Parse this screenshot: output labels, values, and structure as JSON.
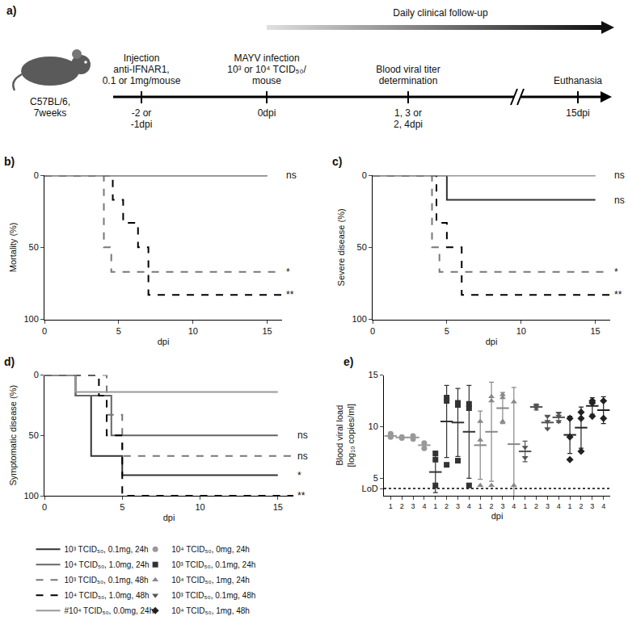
{
  "diagram": {
    "panel": "a)",
    "subject": [
      "C57BL/6,",
      "7weeks"
    ],
    "follow_up": "Daily clinical follow-up",
    "events": [
      {
        "above": [
          "Injection",
          "anti-IFNAR1,",
          "0.1 or 1mg/mouse"
        ],
        "below": [
          "-2 or",
          "-1dpi"
        ]
      },
      {
        "above": [
          "MAYV infection",
          "10³ or 10⁴ TCID₅₀/",
          "mouse"
        ],
        "below": [
          "0dpi"
        ]
      },
      {
        "above": [
          "Blood viral titer",
          "determination"
        ],
        "below": [
          "1, 3 or",
          "2, 4dpi"
        ]
      },
      {
        "above": [
          "Euthanasia"
        ],
        "below": [
          "15dpi"
        ]
      }
    ]
  },
  "chart_data": [
    {
      "panel": "b)",
      "type": "line",
      "x_label": "dpi",
      "y_label": "Mortality (%)",
      "xlim": [
        0,
        16
      ],
      "xticks": [
        0,
        5,
        10,
        15
      ],
      "ylim": [
        100,
        0
      ],
      "yticks": [
        0,
        50,
        100
      ],
      "grid": false,
      "series": [
        {
          "name": "10³ TCID₅₀, 0.1mg, 24h",
          "color": "#333333",
          "line_style": "solid",
          "x": [
            0,
            15
          ],
          "values": [
            0,
            0
          ]
        },
        {
          "name": "10⁴ TCID₅₀, 1.0mg, 24h",
          "color": "#666666",
          "line_style": "solid",
          "x": [
            0,
            15
          ],
          "values": [
            0,
            0
          ],
          "significance": "ns"
        },
        {
          "name": "10³ TCID₅₀, 0.1mg, 48h",
          "color": "#777777",
          "line_style": "dashed",
          "x": [
            0,
            4,
            4.5,
            16
          ],
          "values": [
            0,
            50,
            67,
            67
          ],
          "significance": "*"
        },
        {
          "name": "10⁴ TCID₅₀, 1.0mg, 48h",
          "color": "#000000",
          "line_style": "dashed",
          "x": [
            0,
            4.6,
            5.3,
            6.3,
            7,
            16
          ],
          "values": [
            0,
            17,
            33,
            50,
            83,
            83
          ],
          "significance": "**"
        },
        {
          "name": "#10⁴ TCID₅₀, 0.0mg, 24h",
          "color": "#999999",
          "line_style": "solid",
          "x": [
            0,
            15
          ],
          "values": [
            0,
            0
          ]
        }
      ]
    },
    {
      "panel": "c)",
      "type": "line",
      "x_label": "dpi",
      "y_label": "Severe disease (%)",
      "xlim": [
        0,
        16
      ],
      "xticks": [
        0,
        5,
        10,
        15
      ],
      "ylim": [
        100,
        0
      ],
      "yticks": [
        0,
        50,
        100
      ],
      "grid": false,
      "series": [
        {
          "name": "10³ TCID₅₀, 0.1mg, 24h",
          "color": "#333333",
          "line_style": "solid",
          "x": [
            0,
            5,
            15
          ],
          "values": [
            0,
            17,
            17
          ],
          "significance": "ns"
        },
        {
          "name": "10⁴ TCID₅₀, 1.0mg, 24h",
          "color": "#666666",
          "line_style": "solid",
          "x": [
            0,
            15
          ],
          "values": [
            0,
            0
          ]
        },
        {
          "name": "10³ TCID₅₀, 0.1mg, 48h",
          "color": "#777777",
          "line_style": "dashed",
          "x": [
            0,
            4,
            4.5,
            16
          ],
          "values": [
            0,
            50,
            67,
            67
          ],
          "significance": "*"
        },
        {
          "name": "10⁴ TCID₅₀, 1.0mg, 48h",
          "color": "#000000",
          "line_style": "dashed",
          "x": [
            0,
            4.3,
            5,
            6,
            16
          ],
          "values": [
            0,
            33,
            50,
            83,
            83
          ],
          "significance": "**"
        },
        {
          "name": "#10⁴ TCID₅₀, 0.0mg, 24h",
          "color": "#999999",
          "line_style": "solid",
          "x": [
            0,
            15
          ],
          "values": [
            0,
            0
          ],
          "significance": "ns"
        }
      ]
    },
    {
      "panel": "d)",
      "type": "line",
      "x_label": "dpi",
      "y_label": "Symptomatic disease (%)",
      "xlim": [
        0,
        16
      ],
      "xticks": [
        0,
        5,
        10,
        15
      ],
      "ylim": [
        100,
        0
      ],
      "yticks": [
        0,
        50,
        100
      ],
      "grid": false,
      "legend": "bottom",
      "series": [
        {
          "name": "10³ TCID₅₀, 0.1mg, 24h",
          "color": "#333333",
          "line_style": "solid",
          "x": [
            0,
            2,
            3,
            5,
            15
          ],
          "values": [
            0,
            17,
            67,
            83,
            83
          ],
          "significance": "*"
        },
        {
          "name": "10⁴ TCID₅₀, 1.0mg, 24h",
          "color": "#666666",
          "line_style": "solid",
          "x": [
            0,
            2,
            4.3,
            15
          ],
          "values": [
            0,
            17,
            50,
            50
          ],
          "significance": "ns"
        },
        {
          "name": "10³ TCID₅₀, 0.1mg, 48h",
          "color": "#777777",
          "line_style": "dashed",
          "x": [
            0,
            4,
            5,
            16
          ],
          "values": [
            0,
            33,
            67,
            67
          ],
          "significance": "ns"
        },
        {
          "name": "10⁴ TCID₅₀, 1.0mg, 48h",
          "color": "#000000",
          "line_style": "dashed",
          "x": [
            0,
            3.5,
            4,
            5,
            16
          ],
          "values": [
            0,
            17,
            50,
            100,
            100
          ],
          "significance": "**"
        },
        {
          "name": "#10⁴ TCID₅₀, 0.0mg, 24h",
          "color": "#999999",
          "line_style": "solid",
          "x": [
            0,
            2,
            15
          ],
          "values": [
            0,
            14,
            14
          ]
        }
      ]
    },
    {
      "panel": "e)",
      "type": "scatter",
      "x_label": "dpi",
      "y_label": [
        "Blood viral load",
        "[log₁₀ copies/ml]"
      ],
      "ylim": [
        3.3,
        15
      ],
      "yticks": [
        {
          "value": 4,
          "label": "LoD"
        },
        5,
        10,
        15
      ],
      "lod": 4,
      "grid": false,
      "legend": "bottom",
      "series": [
        {
          "name": "10⁴ TCID₅₀, 0mg, 24h",
          "color": "#999999",
          "marker": "circle",
          "categories": [
            "1",
            "2",
            "3",
            "4"
          ],
          "values": [
            9.1,
            8.95,
            8.95,
            8.2
          ],
          "error": [
            0.2,
            0.1,
            0.2,
            0.3
          ],
          "points": [
            [
              9.3,
              9.1,
              9.0
            ],
            [
              8.9,
              9.0
            ],
            [
              9.1,
              8.8
            ],
            [
              8.4,
              7.9
            ]
          ]
        },
        {
          "name": "10³ TCID₅₀, 0.1mg, 24h",
          "color": "#333333",
          "marker": "square",
          "categories": [
            "1",
            "2",
            "3",
            "4"
          ],
          "values": [
            5.6,
            10.5,
            10.4,
            9.5
          ],
          "error": [
            2.0,
            3.5,
            3.3,
            4.5
          ],
          "points": [
            [
              4.3,
              6.8,
              7.4
            ],
            [
              6.3,
              12.5,
              12.8
            ],
            [
              6.7,
              12.1,
              12.3
            ],
            [
              4.3,
              11.8,
              12.2
            ]
          ]
        },
        {
          "name": "10⁴ TCID₅₀, 1mg, 24h",
          "color": "#888888",
          "marker": "triangle-up",
          "categories": [
            "1",
            "2",
            "3",
            "4"
          ],
          "values": [
            8.2,
            9.5,
            11.8,
            8.3
          ],
          "error": [
            3.3,
            4.8,
            1.5,
            5.5
          ],
          "points": [
            [
              4.3,
              8.7,
              10.5
            ],
            [
              4.3,
              12.5,
              12.9
            ],
            [
              10.5,
              12.8,
              13.1
            ],
            [
              4.3,
              12.4
            ]
          ]
        },
        {
          "name": "10³ TCID₅₀, 0.1mg, 48h",
          "color": "#555555",
          "marker": "triangle-down",
          "categories": [
            "1",
            "2",
            "3",
            "4"
          ],
          "values": [
            7.6,
            11.9,
            10.4,
            10.9
          ],
          "error": [
            1.0,
            0.3,
            0.6,
            0.5
          ],
          "points": [
            [
              7.0,
              8.0
            ],
            [
              11.8,
              12.0
            ],
            [
              9.8,
              10.5,
              11.0
            ],
            [
              10.5,
              11.3,
              11.0
            ]
          ]
        },
        {
          "name": "10⁴ TCID₅₀, 1mg, 48h",
          "color": "#222222",
          "marker": "diamond",
          "categories": [
            "1",
            "2",
            "3",
            "4"
          ],
          "values": [
            9.2,
            9.9,
            12.0,
            11.6
          ],
          "error": [
            1.8,
            2.0,
            0.8,
            1.3
          ],
          "points": [
            [
              6.8,
              9.0,
              10.8
            ],
            [
              7.6,
              10.8,
              11.4
            ],
            [
              11.0,
              12.3,
              12.5
            ],
            [
              10.8,
              12.5
            ]
          ]
        }
      ]
    }
  ]
}
